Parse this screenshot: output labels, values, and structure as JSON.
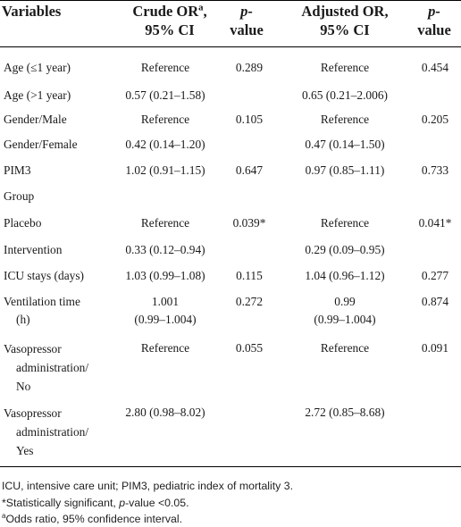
{
  "header": {
    "variables": "Variables",
    "crude_or_line1": "Crude OR",
    "crude_or_sup": "a",
    "crude_or_line1_suffix": ",",
    "crude_or_line2": "95% CI",
    "p1_line1": "p-",
    "p1_line2": "value",
    "adjusted_line1": "Adjusted OR,",
    "adjusted_line2": "95% CI",
    "p2_line1": "p-",
    "p2_line2": "value"
  },
  "rows": [
    {
      "variable": "Age (≤1 year)",
      "crude": "Reference",
      "p1": "0.289",
      "adjusted": "Reference",
      "p2": "0.454"
    },
    {
      "variable": "Age (>1 year)",
      "crude": "0.57 (0.21–1.58)",
      "p1": "",
      "adjusted": "0.65 (0.21–2.006)",
      "p2": ""
    },
    {
      "variable": "Gender/Male",
      "crude": "Reference",
      "p1": "0.105",
      "adjusted": "Reference",
      "p2": "0.205"
    },
    {
      "variable": "Gender/Female",
      "crude": "0.42 (0.14–1.20)",
      "p1": "",
      "adjusted": "0.47 (0.14–1.50)",
      "p2": ""
    },
    {
      "variable": "PIM3",
      "crude": "1.02 (0.91–1.15)",
      "p1": "0.647",
      "adjusted": "0.97 (0.85–1.11)",
      "p2": "0.733"
    },
    {
      "variable": "Group",
      "crude": "",
      "p1": "",
      "adjusted": "",
      "p2": ""
    },
    {
      "variable": "Placebo",
      "crude": "Reference",
      "p1": "0.039*",
      "adjusted": "Reference",
      "p2": "0.041*"
    },
    {
      "variable": "Intervention",
      "crude": "0.33 (0.12–0.94)",
      "p1": "",
      "adjusted": "0.29 (0.09–0.95)",
      "p2": ""
    },
    {
      "variable": "ICU stays (days)",
      "crude": "1.03 (0.99–1.08)",
      "p1": "0.115",
      "adjusted": "1.04 (0.96–1.12)",
      "p2": "0.277"
    },
    {
      "variable_lines": [
        "Ventilation time",
        "(h)"
      ],
      "crude_lines": [
        "1.001",
        "(0.99–1.004)"
      ],
      "p1": "0.272",
      "adjusted_lines": [
        "0.99",
        "(0.99–1.004)"
      ],
      "p2": "0.874"
    },
    {
      "variable_lines": [
        "Vasopressor",
        "administration/",
        "No"
      ],
      "crude": "Reference",
      "p1": "0.055",
      "adjusted": "Reference",
      "p2": "0.091"
    },
    {
      "variable_lines": [
        "Vasopressor",
        "administration/",
        "Yes"
      ],
      "crude": "2.80 (0.98–8.02)",
      "p1": "",
      "adjusted": "2.72 (0.85–8.68)",
      "p2": ""
    }
  ],
  "footnotes": {
    "abbrev": "ICU, intensive care unit; PIM3, pediatric index of mortality 3.",
    "sig_prefix": "*Statistically significant, ",
    "sig_p": "p",
    "sig_suffix": "-value <0.05.",
    "odds_sup": "a",
    "odds_text": "Odds ratio, 95% confidence interval."
  }
}
